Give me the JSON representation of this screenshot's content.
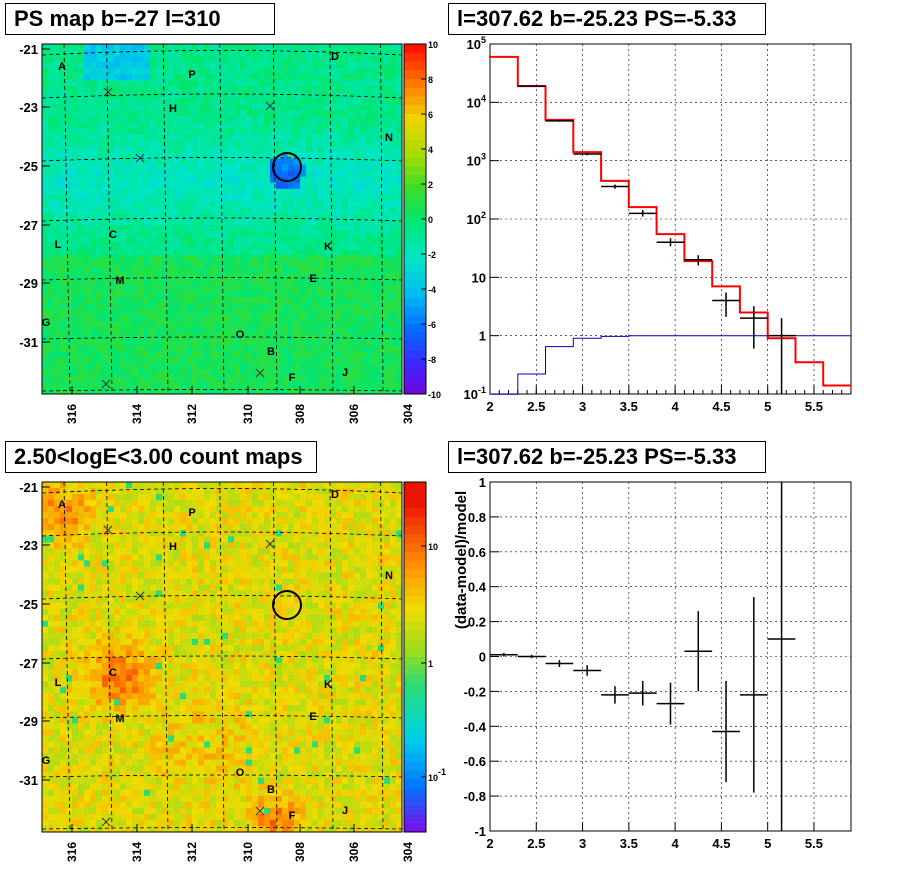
{
  "panels": {
    "ps_map_title": "PS map b=-27 l=310",
    "spectrum_title": "l=307.62 b=-25.23 PS=-5.33",
    "count_map_title": "2.50<logE<3.00 count maps",
    "residual_title": "l=307.62 b=-25.23 PS=-5.33",
    "residual_ylabel": "(data-model)/model"
  },
  "colors": {
    "model_line": "#ff0000",
    "background_line": "#0000cc",
    "data_points": "#000000"
  },
  "chart_data": [
    {
      "type": "heatmap",
      "name": "ps_map",
      "x_ticks": [
        "316",
        "314",
        "312",
        "310",
        "308",
        "306",
        "304"
      ],
      "y_ticks": [
        "-21",
        "-23",
        "-25",
        "-27",
        "-29",
        "-31"
      ],
      "colorbar_ticks": [
        "10",
        "8",
        "6",
        "4",
        "2",
        "0",
        "-2",
        "-4",
        "-6",
        "-8",
        "-10"
      ],
      "colorbar_range": [
        -10,
        10
      ],
      "source_labels": [
        "A",
        "P",
        "D",
        "H",
        "N",
        "L",
        "C",
        "K",
        "M",
        "E",
        "G",
        "O",
        "B",
        "F",
        "J"
      ],
      "marked_position": {
        "l": 307.62,
        "b": -25.23
      }
    },
    {
      "type": "line",
      "name": "spectrum",
      "log_y": true,
      "xlim": [
        2.0,
        5.9
      ],
      "ylim": [
        0.1,
        100000
      ],
      "x_ticks": [
        "2",
        "2.5",
        "3",
        "3.5",
        "4",
        "4.5",
        "5",
        "5.5"
      ],
      "y_ticks": [
        "10^5",
        "10^4",
        "10^3",
        "10^2",
        "10",
        "1",
        "10^-1"
      ],
      "model_step_edges": [
        2.0,
        2.3,
        2.6,
        2.9,
        3.2,
        3.5,
        3.8,
        4.1,
        4.4,
        4.7,
        5.0,
        5.3,
        5.6,
        5.9
      ],
      "model_values": [
        60000,
        19000,
        5000,
        1400,
        450,
        160,
        55,
        19,
        7,
        2.5,
        0.9,
        0.35,
        0.14
      ],
      "background_values": [
        0.05,
        0.22,
        0.65,
        0.9,
        0.97,
        1.0,
        1.0,
        1.0,
        1.0,
        1.0,
        1.0,
        1.0,
        1.0
      ],
      "data_points": [
        {
          "x": 2.45,
          "y": 19000,
          "xerr": 0.15,
          "ylo": 18500,
          "yhi": 19500
        },
        {
          "x": 2.75,
          "y": 4800,
          "xerr": 0.15,
          "ylo": 4650,
          "yhi": 4950
        },
        {
          "x": 3.05,
          "y": 1300,
          "xerr": 0.15,
          "ylo": 1240,
          "yhi": 1360
        },
        {
          "x": 3.35,
          "y": 360,
          "xerr": 0.15,
          "ylo": 330,
          "yhi": 390
        },
        {
          "x": 3.65,
          "y": 125,
          "xerr": 0.15,
          "ylo": 110,
          "yhi": 142
        },
        {
          "x": 3.95,
          "y": 40,
          "xerr": 0.15,
          "ylo": 34,
          "yhi": 47
        },
        {
          "x": 4.25,
          "y": 20,
          "xerr": 0.15,
          "ylo": 16,
          "yhi": 24
        },
        {
          "x": 4.55,
          "y": 4,
          "xerr": 0.15,
          "ylo": 2.1,
          "yhi": 5.5
        },
        {
          "x": 4.85,
          "y": 2,
          "xerr": 0.15,
          "ylo": 0.6,
          "yhi": 3.2
        },
        {
          "x": 5.15,
          "y": 1,
          "xerr": 0.15,
          "ylo": 0.1,
          "yhi": 2.0
        }
      ]
    },
    {
      "type": "heatmap",
      "name": "count_map",
      "x_ticks": [
        "316",
        "314",
        "312",
        "310",
        "308",
        "306",
        "304"
      ],
      "y_ticks": [
        "-21",
        "-23",
        "-25",
        "-27",
        "-29",
        "-31"
      ],
      "colorbar_ticks": [
        "10",
        "1",
        "10^-1"
      ],
      "source_labels": [
        "A",
        "P",
        "D",
        "H",
        "N",
        "L",
        "C",
        "K",
        "M",
        "E",
        "G",
        "O",
        "B",
        "F",
        "J"
      ]
    },
    {
      "type": "scatter",
      "name": "residuals",
      "xlim": [
        2.0,
        5.9
      ],
      "ylim": [
        -1,
        1
      ],
      "x_ticks": [
        "2",
        "2.5",
        "3",
        "3.5",
        "4",
        "4.5",
        "5",
        "5.5"
      ],
      "y_ticks": [
        "1",
        "0.8",
        "0.6",
        "0.4",
        "0.2",
        "0",
        "-0.2",
        "-0.4",
        "-0.6",
        "-0.8",
        "-1"
      ],
      "points": [
        {
          "x": 2.15,
          "y": 0.01,
          "xerr": 0.15,
          "err": 0.01
        },
        {
          "x": 2.45,
          "y": 0.0,
          "xerr": 0.15,
          "err": 0.01
        },
        {
          "x": 2.75,
          "y": -0.04,
          "xerr": 0.15,
          "err": 0.02
        },
        {
          "x": 3.05,
          "y": -0.08,
          "xerr": 0.15,
          "err": 0.03
        },
        {
          "x": 3.35,
          "y": -0.22,
          "xerr": 0.15,
          "err": 0.05
        },
        {
          "x": 3.65,
          "y": -0.21,
          "xerr": 0.15,
          "err": 0.07
        },
        {
          "x": 3.95,
          "y": -0.27,
          "xerr": 0.15,
          "err": 0.12
        },
        {
          "x": 4.25,
          "y": 0.03,
          "xerr": 0.15,
          "err": 0.23
        },
        {
          "x": 4.55,
          "y": -0.43,
          "xerr": 0.15,
          "err": 0.29
        },
        {
          "x": 4.85,
          "y": -0.22,
          "xerr": 0.15,
          "err": 0.56
        },
        {
          "x": 5.15,
          "y": 0.1,
          "xerr": 0.15,
          "err": 1.2
        }
      ]
    }
  ]
}
